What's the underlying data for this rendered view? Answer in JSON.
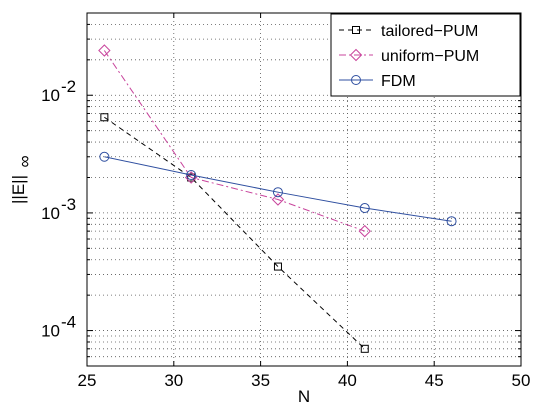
{
  "chart_data": {
    "type": "line",
    "xlabel": "N",
    "ylabel_main": "||E||",
    "ylabel_sub": "∞",
    "xlim": [
      25,
      50
    ],
    "ylim": [
      5e-05,
      0.05
    ],
    "yscale": "log",
    "grid": true,
    "legend_position": "top-right",
    "x_ticks": [
      25,
      30,
      35,
      40,
      45,
      50
    ],
    "x_tick_labels": [
      "25",
      "30",
      "35",
      "40",
      "45",
      "50"
    ],
    "y_ticks": [
      0.0001,
      0.001,
      0.01
    ],
    "y_tick_labels": [
      {
        "base": "10",
        "exp": "-4"
      },
      {
        "base": "10",
        "exp": "-3"
      },
      {
        "base": "10",
        "exp": "-2"
      }
    ],
    "series": [
      {
        "name": "tailored−PUM",
        "color": "#000000",
        "dash": "dashed",
        "marker": "square",
        "x": [
          26,
          31,
          36,
          41
        ],
        "y": [
          0.0065,
          0.002,
          0.00035,
          7e-05
        ]
      },
      {
        "name": "uniform−PUM",
        "color": "#c8449c",
        "dash": "dashdot",
        "marker": "diamond",
        "x": [
          26,
          31,
          36,
          41
        ],
        "y": [
          0.024,
          0.002,
          0.0013,
          0.0007
        ]
      },
      {
        "name": "FDM",
        "color": "#2f4fa0",
        "dash": "solid",
        "marker": "circle",
        "x": [
          26,
          31,
          36,
          41,
          46
        ],
        "y": [
          0.003,
          0.0021,
          0.0015,
          0.0011,
          0.00085
        ]
      }
    ]
  }
}
